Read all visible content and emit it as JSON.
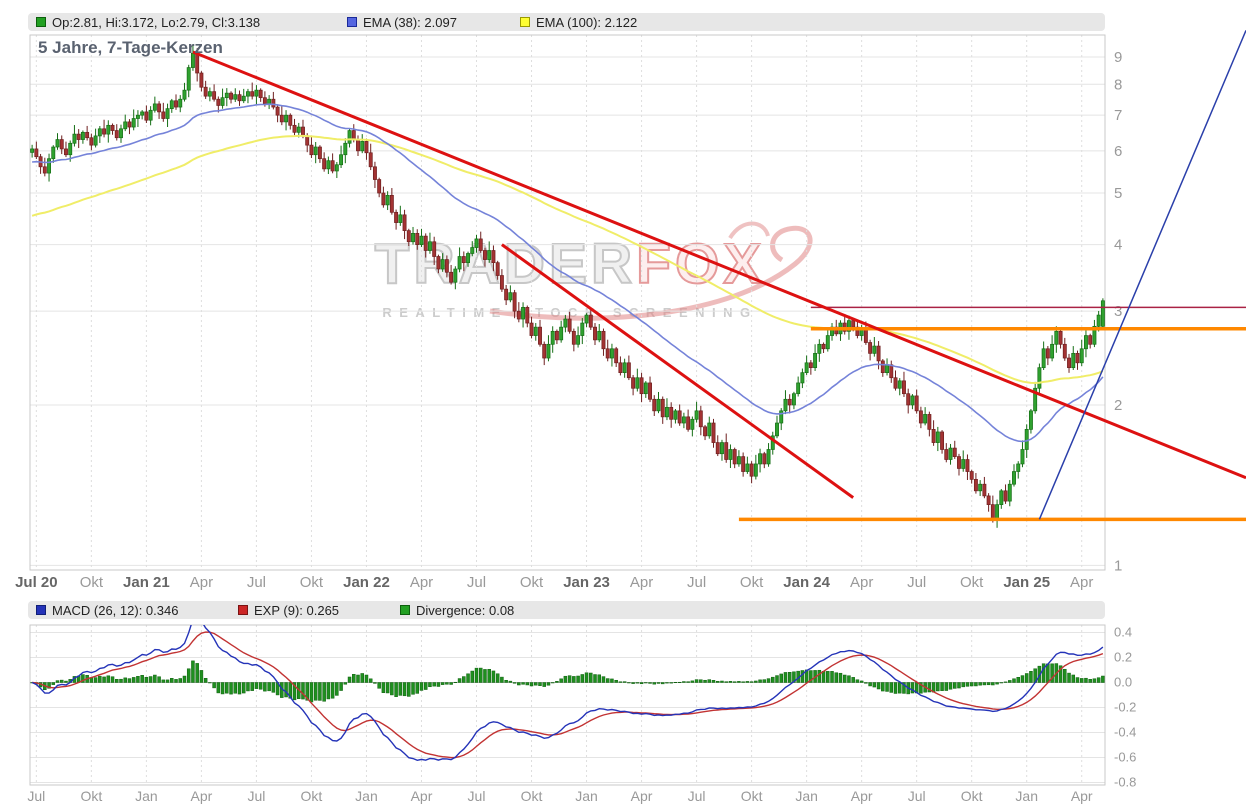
{
  "title": "5 Jahre, 7-Tage-Kerzen",
  "legend": {
    "ohlc": "Op:2.81, Hi:3.172, Lo:2.79, Cl:3.138",
    "ema38": "EMA (38): 2.097",
    "ema100": "EMA (100): 2.122"
  },
  "macd_legend": {
    "macd": "MACD (26, 12): 0.346",
    "exp": "EXP (9): 0.265",
    "divergence": "Divergence: 0.08"
  },
  "watermark": {
    "brand_gray": "TRADER",
    "brand_red": "FOX",
    "subtitle": "REALTIME STOCK SCREENING"
  },
  "colors": {
    "candle_up_fill": "#2fa12f",
    "candle_up_stroke": "#156e15",
    "candle_down_fill": "#a33333",
    "candle_down_stroke": "#6e1f1f",
    "ema38_line": "#7583d9",
    "ema100_line": "#f0ed68",
    "grid_line": "#e4e4e4",
    "zero_line": "#cbcbcb",
    "axis_text": "#999999",
    "axis_text_bold": "#666666",
    "plot_border": "#c9c9c9",
    "macd_line": "#2433b8",
    "signal_line": "#c23333",
    "histogram_fill": "#1f8f1f",
    "histogram_stroke": "#0f5f0f",
    "trend_red": "#dd1111",
    "support_orange": "#ff8800",
    "alarm_darkred": "#aa2244",
    "uptrend_blue": "#2a3faa",
    "swatches": {
      "ohlc": {
        "fill": "#22a022",
        "border": "#0d5f0d"
      },
      "ema38": {
        "fill": "#5566e0",
        "border": "#1b2a99"
      },
      "ema100": {
        "fill": "#ffff33",
        "border": "#9a9a00"
      },
      "macd": {
        "fill": "#2433b8",
        "border": "#101f77"
      },
      "exp": {
        "fill": "#cc2626",
        "border": "#7a1414"
      },
      "div": {
        "fill": "#22a022",
        "border": "#0d5f0d"
      }
    }
  },
  "chart_data": [
    {
      "type": "candlestick",
      "title": "5 Jahre, 7-Tage-Kerzen",
      "timeframe": "weekly (7-Tage-Kerzen), 5 Jahre",
      "y_scale": "log",
      "ylim": [
        0.98,
        9.9
      ],
      "y_ticks": [
        9,
        8,
        7,
        6,
        5,
        4,
        3,
        2,
        1
      ],
      "x_ticks": [
        {
          "label": "Jul 20",
          "week": 1,
          "bold": true
        },
        {
          "label": "Okt",
          "week": 14
        },
        {
          "label": "Jan 21",
          "week": 27,
          "bold": true
        },
        {
          "label": "Apr",
          "week": 40
        },
        {
          "label": "Jul",
          "week": 53
        },
        {
          "label": "Okt",
          "week": 66
        },
        {
          "label": "Jan 22",
          "week": 79,
          "bold": true
        },
        {
          "label": "Apr",
          "week": 92
        },
        {
          "label": "Jul",
          "week": 105
        },
        {
          "label": "Okt",
          "week": 118
        },
        {
          "label": "Jan 23",
          "week": 131,
          "bold": true
        },
        {
          "label": "Apr",
          "week": 144
        },
        {
          "label": "Jul",
          "week": 157
        },
        {
          "label": "Okt",
          "week": 170
        },
        {
          "label": "Jan 24",
          "week": 183,
          "bold": true
        },
        {
          "label": "Apr",
          "week": 196
        },
        {
          "label": "Jul",
          "week": 209
        },
        {
          "label": "Okt",
          "week": 222
        },
        {
          "label": "Jan 25",
          "week": 235,
          "bold": true
        },
        {
          "label": "Apr",
          "week": 248
        }
      ],
      "weekly_closes": [
        6.05,
        5.85,
        5.6,
        5.45,
        5.8,
        6.1,
        6.3,
        6.05,
        5.9,
        6.2,
        6.45,
        6.3,
        6.5,
        6.35,
        6.15,
        6.4,
        6.6,
        6.45,
        6.7,
        6.55,
        6.35,
        6.6,
        6.8,
        6.65,
        6.9,
        7.0,
        7.1,
        6.85,
        7.15,
        7.35,
        7.1,
        6.9,
        7.2,
        7.45,
        7.25,
        7.5,
        7.8,
        8.6,
        9.15,
        8.4,
        7.9,
        7.6,
        7.75,
        7.5,
        7.3,
        7.55,
        7.7,
        7.5,
        7.65,
        7.45,
        7.6,
        7.75,
        7.6,
        7.8,
        7.55,
        7.35,
        7.5,
        7.25,
        7.0,
        6.8,
        7.0,
        6.7,
        6.5,
        6.65,
        6.4,
        6.15,
        5.9,
        6.1,
        5.8,
        5.55,
        5.75,
        5.5,
        5.65,
        5.9,
        6.2,
        6.55,
        6.3,
        6.0,
        6.25,
        5.95,
        5.6,
        5.3,
        5.0,
        4.75,
        4.95,
        4.6,
        4.4,
        4.55,
        4.25,
        4.05,
        4.2,
        4.0,
        4.15,
        3.9,
        4.05,
        3.8,
        3.6,
        3.75,
        3.55,
        3.4,
        3.6,
        3.8,
        3.7,
        3.85,
        3.95,
        4.1,
        3.9,
        3.75,
        3.9,
        3.7,
        3.5,
        3.3,
        3.15,
        3.25,
        3.0,
        2.9,
        3.05,
        2.85,
        2.7,
        2.8,
        2.6,
        2.45,
        2.6,
        2.75,
        2.65,
        2.8,
        2.9,
        2.75,
        2.6,
        2.7,
        2.85,
        2.95,
        2.8,
        2.65,
        2.75,
        2.55,
        2.45,
        2.55,
        2.4,
        2.3,
        2.4,
        2.25,
        2.15,
        2.25,
        2.1,
        2.2,
        2.05,
        1.95,
        2.05,
        1.9,
        1.98,
        1.88,
        1.95,
        1.85,
        1.9,
        1.8,
        1.88,
        1.95,
        1.82,
        1.75,
        1.85,
        1.7,
        1.62,
        1.7,
        1.58,
        1.65,
        1.55,
        1.6,
        1.5,
        1.55,
        1.47,
        1.55,
        1.62,
        1.55,
        1.65,
        1.75,
        1.85,
        1.95,
        2.05,
        2.0,
        2.1,
        2.2,
        2.3,
        2.4,
        2.35,
        2.5,
        2.6,
        2.55,
        2.7,
        2.8,
        2.72,
        2.85,
        2.75,
        2.88,
        2.8,
        2.7,
        2.78,
        2.62,
        2.5,
        2.58,
        2.42,
        2.3,
        2.38,
        2.25,
        2.15,
        2.22,
        2.1,
        2.0,
        2.08,
        1.95,
        1.85,
        1.92,
        1.8,
        1.7,
        1.78,
        1.65,
        1.58,
        1.66,
        1.6,
        1.52,
        1.58,
        1.5,
        1.45,
        1.38,
        1.42,
        1.35,
        1.3,
        1.22,
        1.3,
        1.38,
        1.32,
        1.42,
        1.5,
        1.55,
        1.65,
        1.8,
        1.95,
        2.15,
        2.35,
        2.55,
        2.45,
        2.6,
        2.75,
        2.6,
        2.45,
        2.35,
        2.5,
        2.4,
        2.55,
        2.7,
        2.6,
        2.81,
        2.95,
        3.138
      ],
      "wick_hi": [
        0.018,
        0.032,
        0.012,
        0.04,
        0.022,
        0.008,
        0.028
      ],
      "wick_lo": [
        0.022,
        0.01,
        0.03,
        0.014,
        0.036,
        0.018,
        0.012
      ],
      "last_candle": {
        "open": 2.81,
        "high": 3.172,
        "low": 2.79,
        "close": 3.138
      },
      "ema38_period": 38,
      "ema38_seed": 5.7,
      "ema38_last": 2.097,
      "ema100_period": 100,
      "ema100_seed": 4.5,
      "ema100_last": 2.122,
      "trendlines": [
        {
          "name": "downtrend-major-line",
          "x1_week": 38,
          "v1": 9.2,
          "x2_week": 288,
          "v2": 1.46,
          "color": "#dd1111",
          "width": 3
        },
        {
          "name": "downtrend-minor-line",
          "x1_week": 111,
          "v1": 4.0,
          "x2_week": 194,
          "v2": 1.34,
          "color": "#dd1111",
          "width": 3
        },
        {
          "name": "uptrend-steep-line",
          "x1_week": 238,
          "v1": 1.22,
          "x2_week": 288,
          "v2": 10.1,
          "color": "#2a3faa",
          "width": 1.5
        }
      ],
      "hlines": [
        {
          "name": "alarm-price-line",
          "value": 3.05,
          "from_week": 184,
          "to_week": 288,
          "color": "#aa2244",
          "width": 1.5
        },
        {
          "name": "resistance-orange-line",
          "value": 2.78,
          "from_week": 184,
          "to_week": 288,
          "color": "#ff8800",
          "width": 3.5
        },
        {
          "name": "support-orange-line",
          "value": 1.22,
          "from_week": 167,
          "to_week": 288,
          "color": "#ff8800",
          "width": 3.5
        }
      ]
    },
    {
      "type": "macd",
      "fast_period": 12,
      "slow_period": 26,
      "signal_period": 9,
      "ylim": [
        -0.82,
        0.46
      ],
      "y_ticks": [
        {
          "value": 0.4,
          "label": "0.4"
        },
        {
          "value": 0.2,
          "label": "0.2"
        },
        {
          "value": 0,
          "label": "0.0"
        },
        {
          "value": -0.2,
          "label": "-0.2"
        },
        {
          "value": -0.4,
          "label": "-0.4"
        },
        {
          "value": -0.6,
          "label": "-0.6"
        },
        {
          "value": -0.8,
          "label": "-0.8"
        }
      ],
      "x_ticks": [
        {
          "label": "Jul",
          "week": 1
        },
        {
          "label": "Okt",
          "week": 14
        },
        {
          "label": "Jan",
          "week": 27
        },
        {
          "label": "Apr",
          "week": 40
        },
        {
          "label": "Jul",
          "week": 53
        },
        {
          "label": "Okt",
          "week": 66
        },
        {
          "label": "Jan",
          "week": 79
        },
        {
          "label": "Apr",
          "week": 92
        },
        {
          "label": "Jul",
          "week": 105
        },
        {
          "label": "Okt",
          "week": 118
        },
        {
          "label": "Jan",
          "week": 131
        },
        {
          "label": "Apr",
          "week": 144
        },
        {
          "label": "Jul",
          "week": 157
        },
        {
          "label": "Okt",
          "week": 170
        },
        {
          "label": "Jan",
          "week": 183
        },
        {
          "label": "Apr",
          "week": 196
        },
        {
          "label": "Jul",
          "week": 209
        },
        {
          "label": "Okt",
          "week": 222
        },
        {
          "label": "Jan",
          "week": 235
        },
        {
          "label": "Apr",
          "week": 248
        }
      ],
      "last_values": {
        "macd": 0.346,
        "signal": 0.265,
        "divergence": 0.08
      }
    }
  ]
}
